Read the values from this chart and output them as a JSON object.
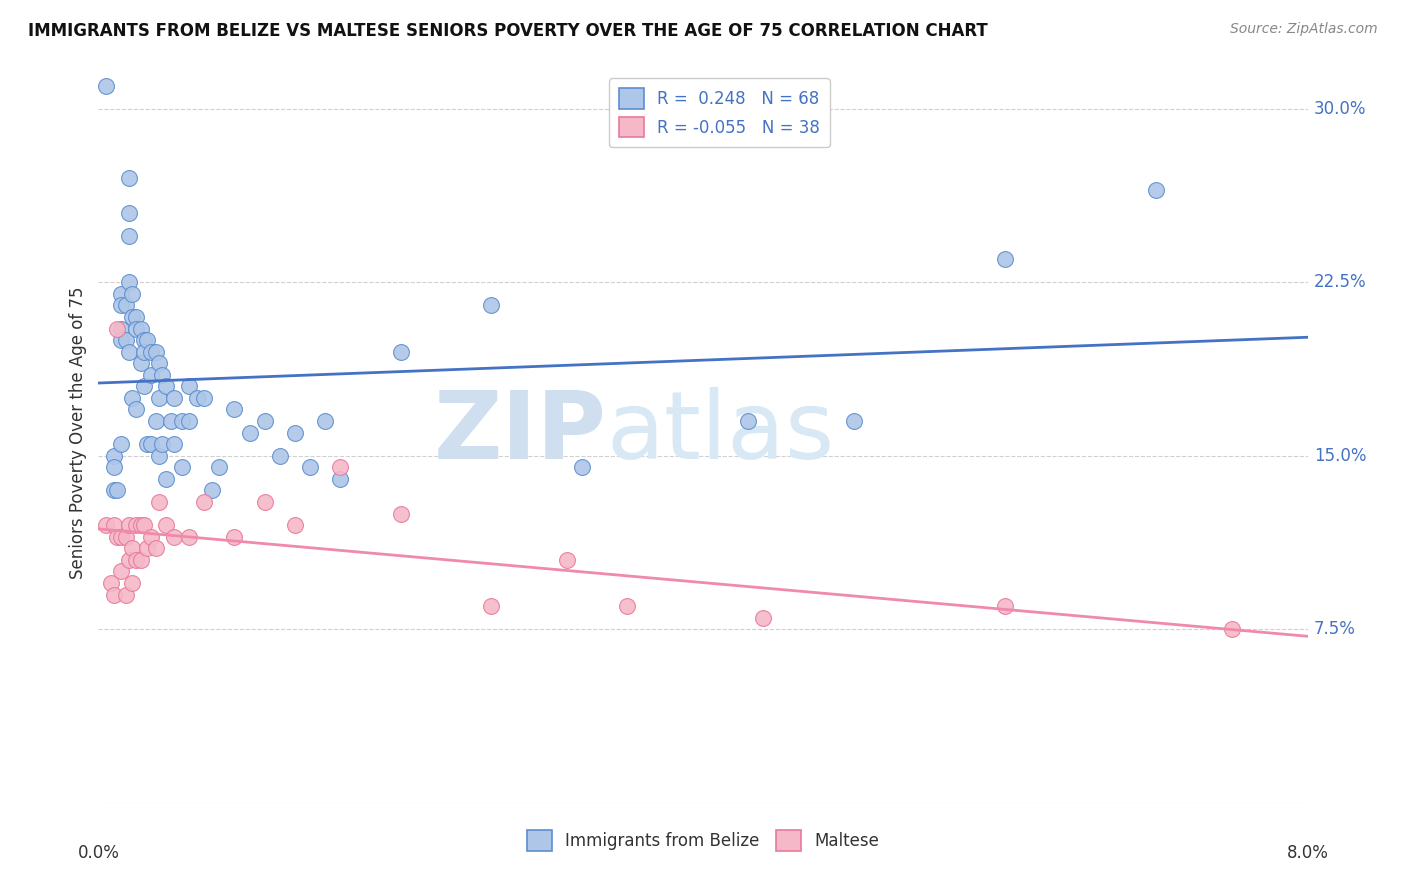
{
  "title": "IMMIGRANTS FROM BELIZE VS MALTESE SENIORS POVERTY OVER THE AGE OF 75 CORRELATION CHART",
  "source": "Source: ZipAtlas.com",
  "ylabel": "Seniors Poverty Over the Age of 75",
  "y_ticks": [
    0.075,
    0.15,
    0.225,
    0.3
  ],
  "y_tick_labels": [
    "7.5%",
    "15.0%",
    "22.5%",
    "30.0%"
  ],
  "xlim": [
    0.0,
    0.08
  ],
  "ylim": [
    0.0,
    0.32
  ],
  "belize_color": "#aec6e8",
  "maltese_color": "#f4b8c8",
  "belize_edge_color": "#5b8ecf",
  "maltese_edge_color": "#e8799a",
  "belize_line_color": "#4472c4",
  "maltese_line_color": "#f08aaa",
  "legend_label_belize": "Immigrants from Belize",
  "legend_label_maltese": "Maltese",
  "R_belize": 0.248,
  "N_belize": 68,
  "R_maltese": -0.055,
  "N_maltese": 38,
  "belize_scatter_x": [
    0.0005,
    0.001,
    0.001,
    0.001,
    0.0012,
    0.0015,
    0.0015,
    0.0015,
    0.0015,
    0.0015,
    0.0018,
    0.0018,
    0.002,
    0.002,
    0.002,
    0.002,
    0.002,
    0.0022,
    0.0022,
    0.0022,
    0.0025,
    0.0025,
    0.0025,
    0.0028,
    0.0028,
    0.003,
    0.003,
    0.003,
    0.0032,
    0.0032,
    0.0035,
    0.0035,
    0.0035,
    0.0038,
    0.0038,
    0.004,
    0.004,
    0.004,
    0.0042,
    0.0042,
    0.0045,
    0.0045,
    0.0048,
    0.005,
    0.005,
    0.0055,
    0.0055,
    0.006,
    0.006,
    0.0065,
    0.007,
    0.0075,
    0.008,
    0.009,
    0.01,
    0.011,
    0.012,
    0.013,
    0.014,
    0.015,
    0.016,
    0.02,
    0.026,
    0.032,
    0.043,
    0.05,
    0.06,
    0.07
  ],
  "belize_scatter_y": [
    0.31,
    0.15,
    0.145,
    0.135,
    0.135,
    0.22,
    0.215,
    0.205,
    0.2,
    0.155,
    0.215,
    0.2,
    0.27,
    0.255,
    0.245,
    0.225,
    0.195,
    0.22,
    0.21,
    0.175,
    0.21,
    0.205,
    0.17,
    0.205,
    0.19,
    0.2,
    0.195,
    0.18,
    0.2,
    0.155,
    0.195,
    0.185,
    0.155,
    0.195,
    0.165,
    0.19,
    0.175,
    0.15,
    0.185,
    0.155,
    0.18,
    0.14,
    0.165,
    0.175,
    0.155,
    0.165,
    0.145,
    0.18,
    0.165,
    0.175,
    0.175,
    0.135,
    0.145,
    0.17,
    0.16,
    0.165,
    0.15,
    0.16,
    0.145,
    0.165,
    0.14,
    0.195,
    0.215,
    0.145,
    0.165,
    0.165,
    0.235,
    0.265
  ],
  "maltese_scatter_x": [
    0.0005,
    0.0008,
    0.001,
    0.001,
    0.0012,
    0.0012,
    0.0015,
    0.0015,
    0.0018,
    0.0018,
    0.002,
    0.002,
    0.0022,
    0.0022,
    0.0025,
    0.0025,
    0.0028,
    0.0028,
    0.003,
    0.0032,
    0.0035,
    0.0038,
    0.004,
    0.0045,
    0.005,
    0.006,
    0.007,
    0.009,
    0.011,
    0.013,
    0.016,
    0.02,
    0.026,
    0.031,
    0.035,
    0.044,
    0.06,
    0.075
  ],
  "maltese_scatter_y": [
    0.12,
    0.095,
    0.12,
    0.09,
    0.205,
    0.115,
    0.115,
    0.1,
    0.115,
    0.09,
    0.12,
    0.105,
    0.11,
    0.095,
    0.12,
    0.105,
    0.12,
    0.105,
    0.12,
    0.11,
    0.115,
    0.11,
    0.13,
    0.12,
    0.115,
    0.115,
    0.13,
    0.115,
    0.13,
    0.12,
    0.145,
    0.125,
    0.085,
    0.105,
    0.085,
    0.08,
    0.085,
    0.075
  ],
  "background_color": "#ffffff",
  "watermark_zip": "ZIP",
  "watermark_atlas": "atlas",
  "watermark_color": "#d0dff0"
}
